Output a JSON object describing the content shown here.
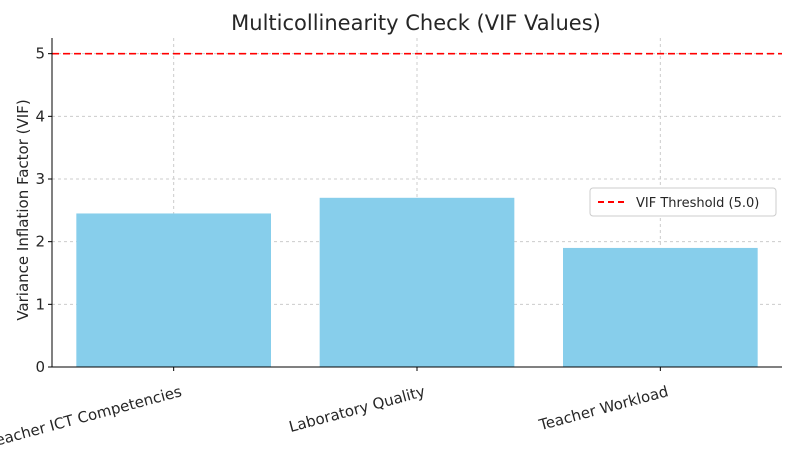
{
  "chart_data": {
    "type": "bar",
    "title": "Multicollinearity Check (VIF Values)",
    "xlabel": "",
    "ylabel": "Variance Inflation Factor (VIF)",
    "categories": [
      "Teacher ICT Competencies",
      "Laboratory Quality",
      "Teacher Workload"
    ],
    "values": [
      2.45,
      2.7,
      1.9
    ],
    "ylim": [
      0,
      5.25
    ],
    "yticks": [
      "0",
      "1",
      "2",
      "3",
      "4",
      "5"
    ],
    "threshold": {
      "value": 5.0,
      "label": "VIF Threshold (5.0)"
    },
    "grid": true,
    "legend_position": "right",
    "colors": {
      "bar": "#87ceeb",
      "threshold": "#ff0000",
      "grid": "#cccccc"
    }
  }
}
